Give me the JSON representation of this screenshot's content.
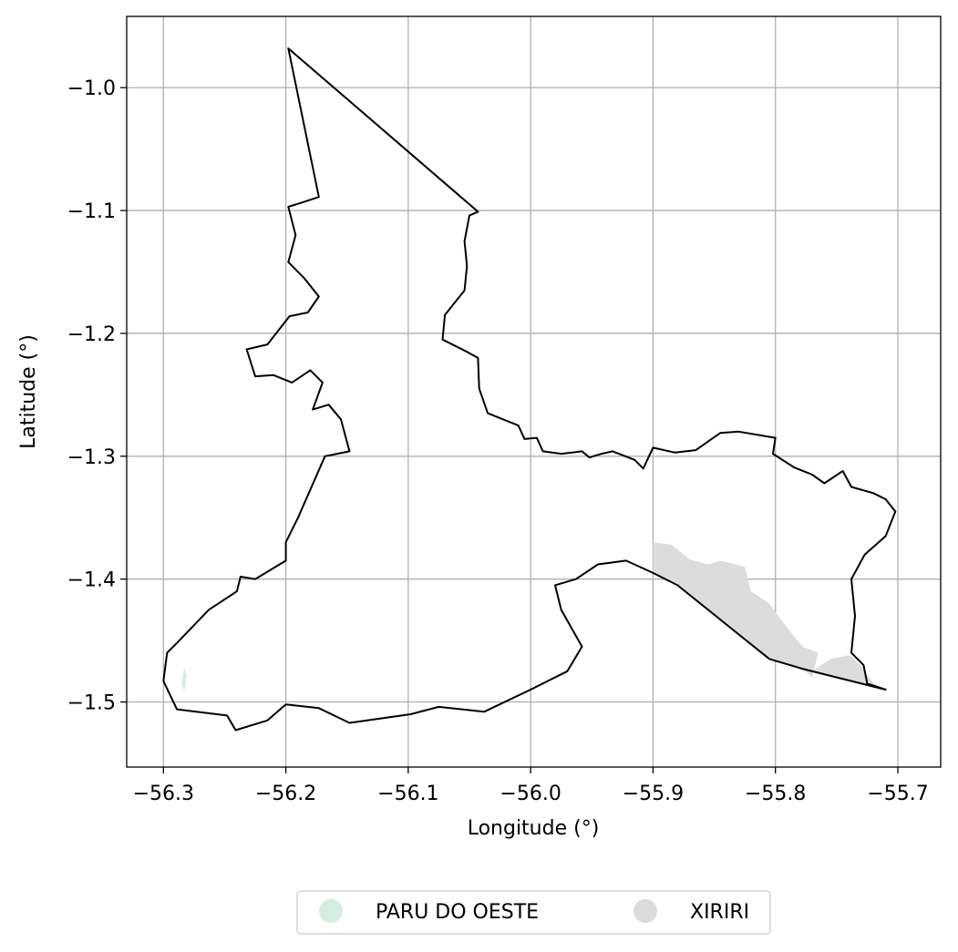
{
  "chart_data": {
    "type": "map",
    "xlabel": "Longitude (°)",
    "ylabel": "Latitude (°)",
    "xlim": [
      -56.33,
      -55.665
    ],
    "ylim": [
      -1.553,
      -0.942
    ],
    "x_ticks": [
      {
        "value": -56.3,
        "label": "−56.3"
      },
      {
        "value": -56.2,
        "label": "−56.2"
      },
      {
        "value": -56.1,
        "label": "−56.1"
      },
      {
        "value": -56.0,
        "label": "−56.0"
      },
      {
        "value": -55.9,
        "label": "−55.9"
      },
      {
        "value": -55.8,
        "label": "−55.8"
      },
      {
        "value": -55.7,
        "label": "−55.7"
      }
    ],
    "y_ticks": [
      {
        "value": -1.0,
        "label": "−1.0"
      },
      {
        "value": -1.1,
        "label": "−1.1"
      },
      {
        "value": -1.2,
        "label": "−1.2"
      },
      {
        "value": -1.3,
        "label": "−1.3"
      },
      {
        "value": -1.4,
        "label": "−1.4"
      },
      {
        "value": -1.5,
        "label": "−1.5"
      }
    ],
    "grid": true,
    "legend_position": "bottom-center",
    "legend": [
      {
        "label": "PARU DO OESTE",
        "color": "#d3ede0"
      },
      {
        "label": "XIRIRI",
        "color": "#dcdcdc"
      }
    ],
    "colors": {
      "boundary": "#000000",
      "grid": "#b0b0b0",
      "axes": "#000000"
    },
    "boundary_outline": [
      [
        -56.198,
        -0.968
      ],
      [
        -56.043,
        -1.101
      ],
      [
        -56.05,
        -1.104
      ],
      [
        -56.054,
        -1.125
      ],
      [
        -56.052,
        -1.145
      ],
      [
        -56.054,
        -1.165
      ],
      [
        -56.07,
        -1.185
      ],
      [
        -56.072,
        -1.205
      ],
      [
        -56.052,
        -1.215
      ],
      [
        -56.043,
        -1.22
      ],
      [
        -56.042,
        -1.245
      ],
      [
        -56.035,
        -1.265
      ],
      [
        -56.01,
        -1.275
      ],
      [
        -56.005,
        -1.286
      ],
      [
        -55.995,
        -1.285
      ],
      [
        -55.99,
        -1.296
      ],
      [
        -55.975,
        -1.298
      ],
      [
        -55.958,
        -1.296
      ],
      [
        -55.952,
        -1.301
      ],
      [
        -55.942,
        -1.298
      ],
      [
        -55.933,
        -1.296
      ],
      [
        -55.915,
        -1.303
      ],
      [
        -55.908,
        -1.31
      ],
      [
        -55.9,
        -1.293
      ],
      [
        -55.882,
        -1.297
      ],
      [
        -55.865,
        -1.295
      ],
      [
        -55.855,
        -1.288
      ],
      [
        -55.845,
        -1.281
      ],
      [
        -55.83,
        -1.28
      ],
      [
        -55.8,
        -1.285
      ],
      [
        -55.802,
        -1.298
      ],
      [
        -55.785,
        -1.309
      ],
      [
        -55.77,
        -1.315
      ],
      [
        -55.76,
        -1.322
      ],
      [
        -55.745,
        -1.312
      ],
      [
        -55.738,
        -1.325
      ],
      [
        -55.72,
        -1.33
      ],
      [
        -55.71,
        -1.335
      ],
      [
        -55.702,
        -1.345
      ],
      [
        -55.71,
        -1.365
      ],
      [
        -55.727,
        -1.38
      ],
      [
        -55.738,
        -1.4
      ],
      [
        -55.735,
        -1.43
      ],
      [
        -55.738,
        -1.46
      ],
      [
        -55.728,
        -1.47
      ],
      [
        -55.725,
        -1.485
      ],
      [
        -55.71,
        -1.49
      ],
      [
        -55.778,
        -1.473
      ],
      [
        -55.805,
        -1.465
      ],
      [
        -55.83,
        -1.445
      ],
      [
        -55.855,
        -1.425
      ],
      [
        -55.88,
        -1.405
      ],
      [
        -55.9,
        -1.395
      ],
      [
        -55.922,
        -1.385
      ],
      [
        -55.945,
        -1.388
      ],
      [
        -55.963,
        -1.4
      ],
      [
        -55.98,
        -1.405
      ],
      [
        -55.975,
        -1.425
      ],
      [
        -55.958,
        -1.455
      ],
      [
        -55.97,
        -1.475
      ],
      [
        -56.0,
        -1.49
      ],
      [
        -56.038,
        -1.508
      ],
      [
        -56.075,
        -1.504
      ],
      [
        -56.098,
        -1.51
      ],
      [
        -56.148,
        -1.517
      ],
      [
        -56.173,
        -1.505
      ],
      [
        -56.2,
        -1.502
      ],
      [
        -56.215,
        -1.515
      ],
      [
        -56.241,
        -1.523
      ],
      [
        -56.248,
        -1.511
      ],
      [
        -56.289,
        -1.506
      ],
      [
        -56.3,
        -1.483
      ],
      [
        -56.297,
        -1.46
      ],
      [
        -56.289,
        -1.452
      ],
      [
        -56.263,
        -1.425
      ],
      [
        -56.24,
        -1.41
      ],
      [
        -56.237,
        -1.398
      ],
      [
        -56.225,
        -1.4
      ],
      [
        -56.215,
        -1.394
      ],
      [
        -56.2,
        -1.385
      ],
      [
        -56.2,
        -1.37
      ],
      [
        -56.19,
        -1.35
      ],
      [
        -56.168,
        -1.3
      ],
      [
        -56.148,
        -1.296
      ],
      [
        -56.155,
        -1.27
      ],
      [
        -56.165,
        -1.258
      ],
      [
        -56.178,
        -1.262
      ],
      [
        -56.17,
        -1.24
      ],
      [
        -56.18,
        -1.23
      ],
      [
        -56.195,
        -1.24
      ],
      [
        -56.21,
        -1.234
      ],
      [
        -56.225,
        -1.235
      ],
      [
        -56.232,
        -1.213
      ],
      [
        -56.215,
        -1.209
      ],
      [
        -56.197,
        -1.186
      ],
      [
        -56.182,
        -1.183
      ],
      [
        -56.173,
        -1.17
      ],
      [
        -56.185,
        -1.155
      ],
      [
        -56.198,
        -1.142
      ],
      [
        -56.192,
        -1.12
      ],
      [
        -56.198,
        -1.097
      ],
      [
        -56.185,
        -1.093
      ],
      [
        -56.173,
        -1.089
      ],
      [
        -56.198,
        -0.968
      ]
    ],
    "xiriri_patches": [
      [
        [
          -55.9,
          -1.37
        ],
        [
          -55.885,
          -1.372
        ],
        [
          -55.87,
          -1.384
        ],
        [
          -55.855,
          -1.388
        ],
        [
          -55.845,
          -1.385
        ],
        [
          -55.825,
          -1.39
        ],
        [
          -55.82,
          -1.41
        ],
        [
          -55.805,
          -1.42
        ],
        [
          -55.79,
          -1.44
        ],
        [
          -55.778,
          -1.455
        ],
        [
          -55.765,
          -1.46
        ],
        [
          -55.77,
          -1.48
        ],
        [
          -55.778,
          -1.473
        ],
        [
          -55.805,
          -1.465
        ],
        [
          -55.83,
          -1.445
        ],
        [
          -55.855,
          -1.425
        ],
        [
          -55.88,
          -1.405
        ],
        [
          -55.9,
          -1.395
        ]
      ],
      [
        [
          -55.755,
          -1.465
        ],
        [
          -55.74,
          -1.462
        ],
        [
          -55.73,
          -1.47
        ],
        [
          -55.72,
          -1.485
        ],
        [
          -55.71,
          -1.49
        ],
        [
          -55.74,
          -1.482
        ],
        [
          -55.77,
          -1.475
        ]
      ]
    ],
    "paru_patches": [
      [
        [
          -56.283,
          -1.472
        ],
        [
          -56.281,
          -1.478
        ],
        [
          -56.283,
          -1.492
        ],
        [
          -56.285,
          -1.485
        ]
      ]
    ]
  }
}
